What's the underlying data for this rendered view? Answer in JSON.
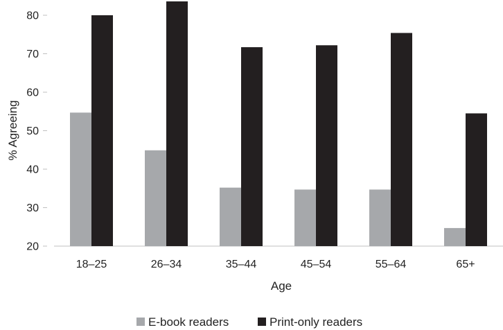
{
  "chart_data": {
    "type": "bar",
    "title": "",
    "xlabel": "Age",
    "ylabel": "% Agreeing",
    "categories": [
      "18–25",
      "26–34",
      "35–44",
      "45–54",
      "55–64",
      "65+"
    ],
    "series": [
      {
        "name": "E-book readers",
        "color": "#a6a8ab",
        "values": [
          54.7,
          44.9,
          35.2,
          34.7,
          34.7,
          24.7
        ]
      },
      {
        "name": "Print-only readers",
        "color": "#231f20",
        "values": [
          80.0,
          83.6,
          71.7,
          72.2,
          75.4,
          54.5
        ]
      }
    ],
    "ylim": [
      20,
      85
    ],
    "yticks": [
      20,
      30,
      40,
      50,
      60,
      70,
      80
    ],
    "grid": false,
    "legend_position": "bottom"
  }
}
